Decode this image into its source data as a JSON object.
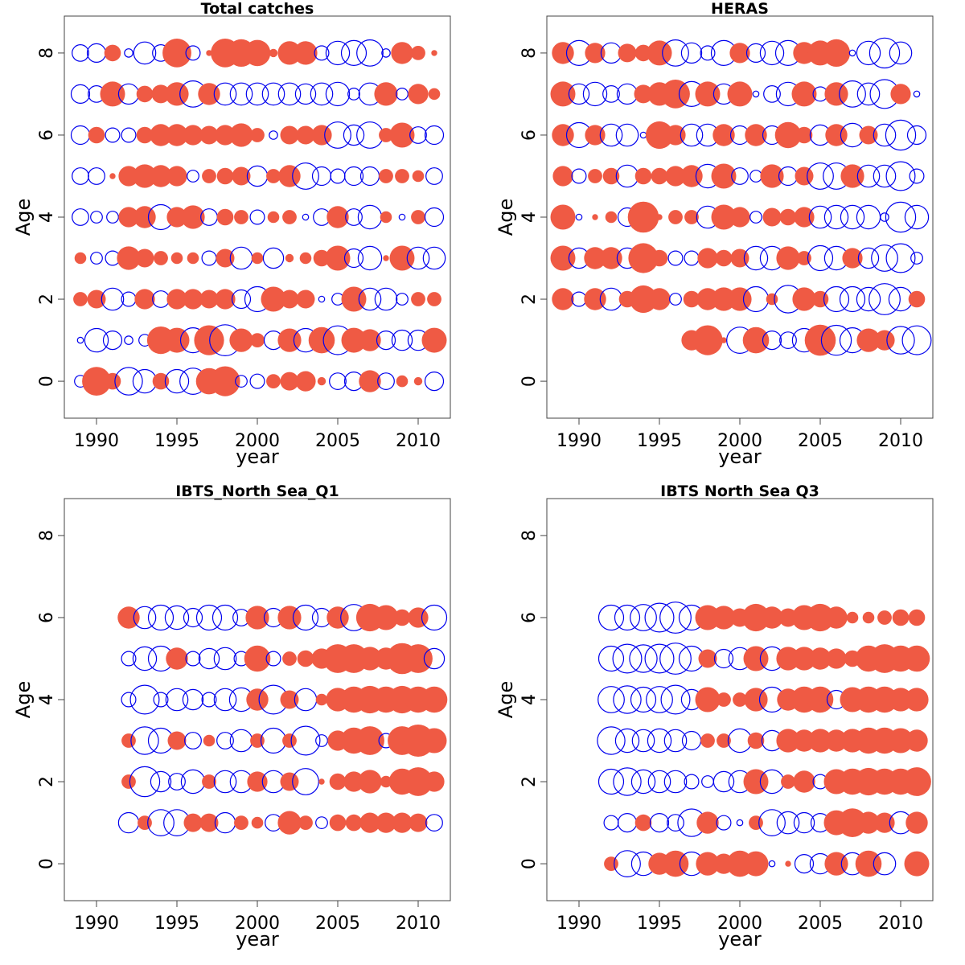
{
  "figure": {
    "pos_color": "#ef5a44",
    "neg_color": "#0000ee"
  },
  "chart_data": [
    {
      "type": "scatter",
      "title": "Total catches",
      "xlabel": "year",
      "ylabel": "Age",
      "xlim": [
        1988,
        2012
      ],
      "ylim": [
        -0.9,
        8.9
      ],
      "xticks": [
        1990,
        1995,
        2000,
        2005,
        2010
      ],
      "yticks": [
        0,
        2,
        4,
        6,
        8
      ],
      "yticks_extra": [
        4
      ],
      "grid": false,
      "first_year": 1989,
      "ages": [
        0,
        1,
        2,
        3,
        4,
        5,
        6,
        7,
        8
      ],
      "residuals": [
        [
          -0.2,
          1.2,
          0.4,
          -1.1,
          -0.8,
          0.4,
          -0.8,
          -1.0,
          1.0,
          1.3,
          -0.2,
          -0.3,
          0.3,
          0.5,
          0.6,
          0.1,
          -0.4,
          -0.5,
          0.7,
          -0.4,
          0.2,
          0.1,
          -0.5
        ],
        [
          -0.05,
          -0.8,
          -0.5,
          -0.1,
          -0.2,
          1.1,
          0.9,
          -0.9,
          1.3,
          -1.4,
          0.8,
          0.3,
          -0.5,
          0.8,
          -0.8,
          1.0,
          -1.2,
          0.9,
          0.7,
          -0.5,
          -0.6,
          -0.6,
          0.9
        ],
        [
          0.3,
          0.5,
          -0.7,
          -0.3,
          0.6,
          -0.4,
          0.6,
          0.6,
          0.5,
          0.6,
          -0.5,
          -0.9,
          0.9,
          0.5,
          0.5,
          -0.05,
          -0.2,
          0.9,
          -0.7,
          -0.7,
          -0.2,
          0.3,
          0.3
        ],
        [
          0.2,
          -0.2,
          -0.3,
          0.8,
          0.5,
          0.3,
          0.2,
          0.2,
          -0.3,
          0.5,
          -0.7,
          0.2,
          -0.6,
          0.1,
          0.2,
          0.4,
          0.9,
          -0.5,
          -0.8,
          0.05,
          0.9,
          -0.7,
          -0.7
        ],
        [
          -0.4,
          -0.2,
          -0.2,
          0.6,
          0.7,
          -0.9,
          0.6,
          0.8,
          -0.4,
          0.4,
          0.3,
          -0.3,
          0.2,
          0.3,
          -0.05,
          -0.4,
          0.7,
          -0.4,
          -0.8,
          0.2,
          -0.05,
          0.3,
          -0.5
        ],
        [
          -0.4,
          -0.4,
          0.05,
          0.6,
          0.8,
          0.7,
          0.6,
          -0.2,
          0.3,
          0.4,
          0.5,
          -0.6,
          0.3,
          0.7,
          -1.0,
          -0.5,
          -0.3,
          -0.5,
          -0.5,
          0.3,
          0.3,
          0.2,
          -0.4
        ],
        [
          -0.5,
          0.4,
          -0.3,
          -0.3,
          0.4,
          0.7,
          0.7,
          0.6,
          0.5,
          0.6,
          0.8,
          0.3,
          -0.1,
          0.5,
          0.5,
          0.6,
          -1.0,
          -0.6,
          -1.0,
          0.3,
          0.9,
          -0.4,
          -0.5
        ],
        [
          -0.5,
          -0.4,
          0.9,
          -0.6,
          0.4,
          0.5,
          0.8,
          -1.0,
          0.7,
          -0.7,
          -0.7,
          -0.7,
          -0.7,
          -0.7,
          -0.6,
          -0.7,
          -0.8,
          -0.2,
          -0.7,
          0.8,
          -0.2,
          0.6,
          0.2
        ],
        [
          -0.4,
          -0.5,
          0.4,
          -0.1,
          -0.7,
          -0.4,
          1.2,
          -0.3,
          0.05,
          1.2,
          1.1,
          1.0,
          0.1,
          0.8,
          0.8,
          -0.3,
          -0.8,
          -0.9,
          -1.0,
          -0.1,
          0.7,
          0.3,
          0.05
        ]
      ]
    },
    {
      "type": "scatter",
      "title": "HERAS",
      "xlabel": "year",
      "ylabel": "Age",
      "xlim": [
        1988,
        2012
      ],
      "ylim": [
        -0.9,
        8.9
      ],
      "xticks": [
        1990,
        1995,
        2000,
        2005,
        2010
      ],
      "yticks": [
        0,
        2,
        4,
        6,
        8
      ],
      "yticks_extra": [
        4
      ],
      "grid": false,
      "first_year": 1989,
      "ages": [
        1,
        2,
        3,
        4,
        5,
        6,
        7,
        8
      ],
      "residuals": [
        [
          null,
          null,
          null,
          null,
          null,
          null,
          null,
          null,
          0.6,
          1.3,
          0.05,
          -1.0,
          1.0,
          -0.5,
          -0.4,
          -0.8,
          1.4,
          -1.3,
          -0.9,
          0.8,
          0.6,
          -1.1,
          -1.2
        ],
        [
          0.7,
          -0.3,
          0.7,
          -0.7,
          0.4,
          1.1,
          0.7,
          -0.2,
          0.4,
          0.7,
          0.8,
          0.8,
          -0.9,
          0.2,
          -1.1,
          0.8,
          0.4,
          -0.9,
          -0.9,
          -0.8,
          -1.4,
          -0.8,
          0.4
        ],
        [
          0.9,
          -0.6,
          0.7,
          0.7,
          -0.6,
          1.3,
          0.4,
          -0.3,
          -0.3,
          0.6,
          0.4,
          0.5,
          -0.8,
          -0.8,
          0.8,
          0.3,
          -0.9,
          -0.8,
          0.6,
          -0.6,
          -1.0,
          -1.2,
          -0.2
        ],
        [
          0.9,
          -0.05,
          0.05,
          0.2,
          -0.5,
          1.4,
          0.05,
          0.3,
          0.3,
          -0.7,
          0.9,
          0.6,
          -0.2,
          0.5,
          0.4,
          0.6,
          -0.7,
          -0.8,
          -0.8,
          -0.8,
          -0.1,
          -1.3,
          -0.8
        ],
        [
          0.6,
          -0.3,
          0.3,
          0.4,
          -0.7,
          0.4,
          0.4,
          0.6,
          0.7,
          -0.8,
          0.9,
          -0.4,
          -0.2,
          0.8,
          -0.5,
          0.5,
          -1.0,
          -1.0,
          0.8,
          -0.7,
          -0.7,
          -1.2,
          -0.3
        ],
        [
          0.7,
          -0.9,
          0.6,
          -0.7,
          -0.7,
          -0.05,
          1.1,
          0.6,
          -0.7,
          -0.7,
          0.7,
          -0.5,
          0.7,
          -0.5,
          1.0,
          0.4,
          -0.6,
          0.7,
          -0.8,
          0.5,
          -0.7,
          -1.3,
          -0.5
        ],
        [
          0.9,
          -0.6,
          -0.8,
          -0.4,
          -0.6,
          0.5,
          0.8,
          1.2,
          -0.9,
          0.9,
          -0.6,
          0.9,
          -0.05,
          -0.4,
          -0.8,
          0.9,
          -0.3,
          0.8,
          -1.0,
          -0.7,
          -1.2,
          0.6,
          -0.05
        ],
        [
          0.7,
          -0.9,
          0.6,
          -0.6,
          0.5,
          0.4,
          0.9,
          -1.0,
          -0.6,
          -0.3,
          -0.9,
          0.6,
          -0.5,
          -0.8,
          -0.9,
          0.7,
          0.9,
          1.1,
          -0.05,
          -0.8,
          -1.3,
          -0.7,
          null
        ]
      ]
    },
    {
      "type": "scatter",
      "title": "IBTS_North Sea_Q1",
      "xlabel": "year",
      "ylabel": "Age",
      "xlim": [
        1988,
        2012
      ],
      "ylim": [
        -0.9,
        8.9
      ],
      "xticks": [
        1990,
        1995,
        2000,
        2005,
        2010
      ],
      "yticks": [
        0,
        2,
        4,
        6,
        8
      ],
      "yticks_extra": [
        4
      ],
      "grid": false,
      "first_year": 1989,
      "ages": [
        1,
        2,
        3,
        4,
        5,
        6
      ],
      "residuals": [
        [
          null,
          null,
          null,
          -0.6,
          0.3,
          -1.0,
          -1.0,
          0.5,
          0.5,
          -0.6,
          0.3,
          0.2,
          -0.4,
          0.8,
          0.3,
          -0.2,
          0.4,
          0.4,
          0.6,
          0.6,
          0.6,
          0.5,
          -0.4
        ],
        [
          null,
          null,
          null,
          0.3,
          -1.3,
          -0.6,
          -0.4,
          -0.8,
          0.3,
          -0.7,
          -0.7,
          0.6,
          -0.7,
          0.5,
          -1.0,
          0.05,
          0.4,
          0.6,
          0.8,
          0.2,
          1.0,
          1.2,
          0.6
        ],
        [
          null,
          null,
          null,
          0.3,
          -1.1,
          -0.9,
          0.5,
          -0.4,
          0.2,
          -0.4,
          -0.7,
          0.3,
          -0.9,
          0.3,
          -1.2,
          -0.2,
          0.6,
          1.0,
          1.2,
          -0.3,
          1.2,
          1.5,
          0.9
        ],
        [
          null,
          null,
          null,
          -0.3,
          -1.2,
          -0.3,
          -0.7,
          -0.6,
          -0.3,
          -0.7,
          -0.8,
          0.7,
          -1.2,
          0.5,
          -0.7,
          0.2,
          0.8,
          1.0,
          1.1,
          1.0,
          1.1,
          1.0,
          1.0
        ],
        [
          null,
          null,
          null,
          -0.3,
          -0.8,
          -0.9,
          0.7,
          -0.3,
          -0.6,
          -0.7,
          -0.3,
          1.0,
          -0.3,
          0.3,
          0.4,
          0.6,
          1.2,
          1.2,
          0.8,
          0.7,
          1.4,
          1.2,
          -0.6
        ],
        [
          null,
          null,
          null,
          0.7,
          -0.7,
          -0.9,
          -0.8,
          -0.5,
          -0.9,
          -0.9,
          -0.4,
          0.8,
          -0.5,
          0.8,
          -0.9,
          -0.5,
          0.7,
          -1.0,
          1.1,
          0.9,
          0.4,
          0.6,
          -0.9
        ]
      ]
    },
    {
      "type": "scatter",
      "title": "IBTS North Sea Q3",
      "xlabel": "year",
      "ylabel": "Age",
      "xlim": [
        1988,
        2012
      ],
      "ylim": [
        -0.9,
        8.9
      ],
      "xticks": [
        1990,
        1995,
        2000,
        2005,
        2010
      ],
      "yticks": [
        0,
        2,
        4,
        6,
        8
      ],
      "yticks_extra": [
        4
      ],
      "grid": false,
      "first_year": 1989,
      "ages": [
        0,
        1,
        2,
        3,
        4,
        5,
        6
      ],
      "residuals": [
        [
          null,
          null,
          null,
          0.3,
          -1.0,
          -0.8,
          0.7,
          1.0,
          -0.8,
          0.8,
          0.6,
          1.0,
          0.9,
          -0.05,
          0.05,
          -0.5,
          -0.6,
          0.8,
          -0.7,
          1.0,
          -0.7,
          null,
          0.9
        ],
        [
          null,
          null,
          null,
          -0.3,
          -0.5,
          0.4,
          -0.5,
          -0.4,
          -1.1,
          0.7,
          -0.3,
          -0.05,
          0.3,
          -1.0,
          -0.7,
          -0.6,
          -0.5,
          0.9,
          1.2,
          0.7,
          0.6,
          -0.7,
          0.7
        ],
        [
          null,
          null,
          null,
          -0.9,
          -1.1,
          -0.8,
          -0.7,
          -0.7,
          -0.3,
          -0.2,
          -0.6,
          -0.7,
          0.9,
          -0.8,
          0.3,
          0.7,
          -0.3,
          0.9,
          1.0,
          1.1,
          1.0,
          1.0,
          1.2
        ],
        [
          null,
          null,
          null,
          -1.1,
          -0.8,
          -0.7,
          -0.8,
          -0.7,
          -0.5,
          0.3,
          0.3,
          -0.8,
          0.4,
          -0.6,
          0.8,
          0.7,
          0.8,
          0.7,
          0.8,
          1.0,
          1.0,
          0.9,
          0.7
        ],
        [
          null,
          null,
          null,
          -1.0,
          -1.1,
          -0.9,
          -1.0,
          -1.2,
          -0.6,
          0.9,
          0.3,
          0.3,
          0.8,
          -0.9,
          0.7,
          1.0,
          1.0,
          -0.5,
          0.9,
          1.0,
          1.0,
          0.8,
          0.8
        ],
        [
          null,
          null,
          null,
          -0.9,
          -1.2,
          -1.1,
          -1.2,
          -1.4,
          -0.9,
          0.5,
          -0.5,
          -0.7,
          0.9,
          -0.8,
          0.8,
          0.8,
          0.7,
          0.6,
          0.4,
          1.0,
          1.2,
          1.0,
          1.0
        ],
        [
          null,
          null,
          null,
          -0.9,
          -0.9,
          -1.0,
          -1.2,
          -1.4,
          -0.9,
          0.9,
          0.8,
          0.5,
          1.1,
          0.7,
          0.5,
          0.9,
          1.1,
          0.7,
          0.2,
          0.2,
          0.3,
          0.4,
          0.4
        ]
      ]
    }
  ]
}
